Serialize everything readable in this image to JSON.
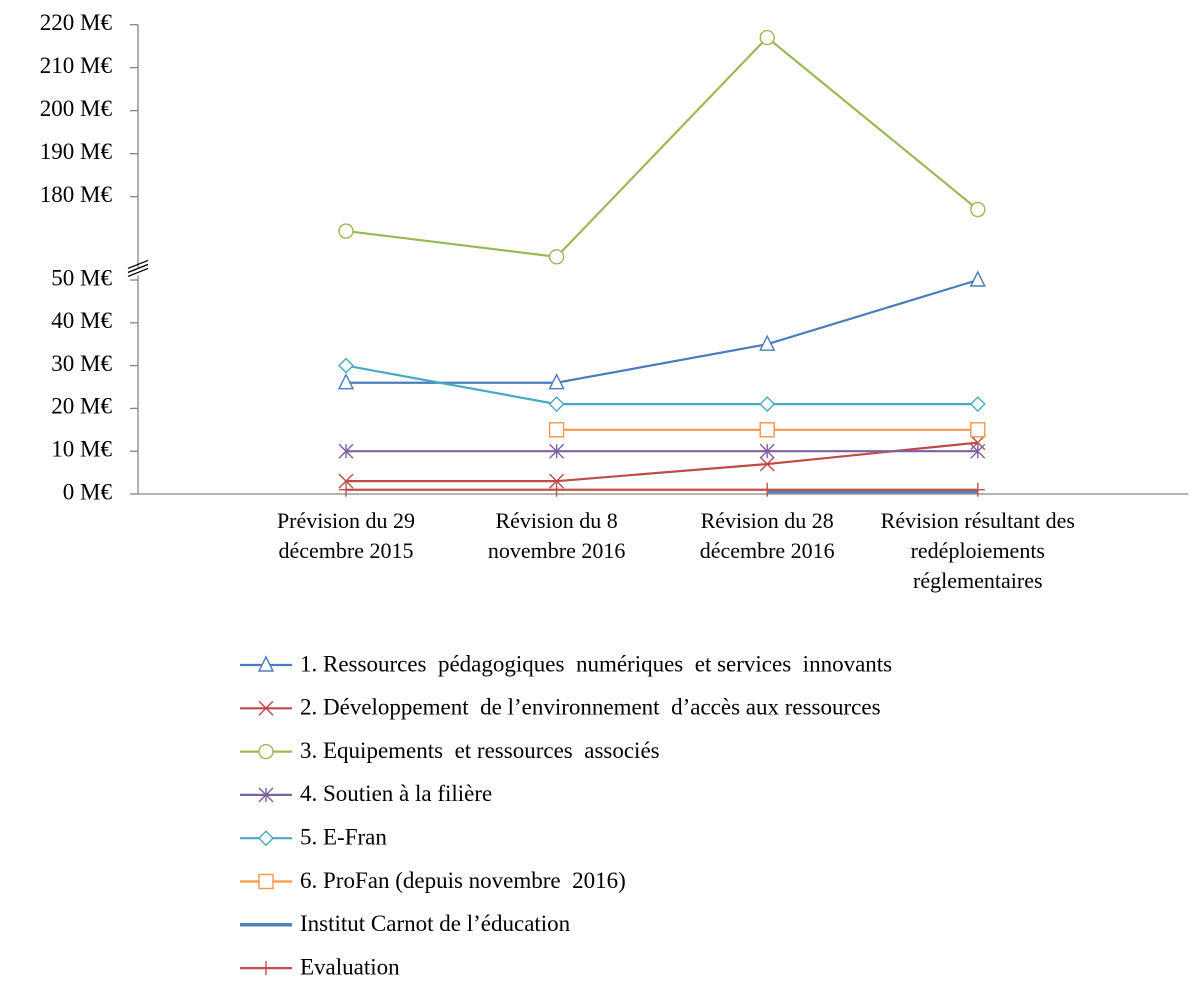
{
  "chart_data": {
    "type": "line",
    "categories": [
      "Prévision du 29 décembre 2015",
      "Révision du 8 novembre 2016",
      "Révision du 28 décembre 2016",
      "Révision résultant des redéploiements réglementaires"
    ],
    "ylim": [
      0,
      220
    ],
    "axis_break": [
      52,
      164
    ],
    "yticks": [
      {
        "value": 0,
        "label": "0 M€"
      },
      {
        "value": 10,
        "label": "10 M€"
      },
      {
        "value": 20,
        "label": "20 M€"
      },
      {
        "value": 30,
        "label": "30 M€"
      },
      {
        "value": 40,
        "label": "40 M€"
      },
      {
        "value": 50,
        "label": "50 M€"
      },
      {
        "value": 180,
        "label": "180 M€"
      },
      {
        "value": 190,
        "label": "190 M€"
      },
      {
        "value": 200,
        "label": "200 M€"
      },
      {
        "value": 210,
        "label": "210 M€"
      },
      {
        "value": 220,
        "label": "220 M€"
      }
    ],
    "series": [
      {
        "name": "1. Ressources  pédagogiques  numériques  et services  innovants",
        "color": "#4a7ebb",
        "marker": "triangle",
        "values": [
          26,
          26,
          35,
          50
        ]
      },
      {
        "name": "2. Développement  de l’environnement  d’accès aux ressources",
        "color": "#be4b48",
        "marker": "x",
        "values": [
          3,
          3,
          7,
          12
        ]
      },
      {
        "name": "3. Equipements  et ressources  associés",
        "color": "#98b954",
        "marker": "circle",
        "values": [
          172,
          166,
          217,
          177
        ]
      },
      {
        "name": "4. Soutien à la filière",
        "color": "#7d60a0",
        "marker": "star",
        "values": [
          10,
          10,
          10,
          10
        ]
      },
      {
        "name": "5. E-Fran",
        "color": "#46aac5",
        "marker": "diamond",
        "values": [
          30,
          21,
          21,
          21
        ]
      },
      {
        "name": "6. ProFan (depuis novembre  2016)",
        "color": "#f79646",
        "marker": "square",
        "values": [
          null,
          15,
          15,
          15
        ]
      },
      {
        "name": "Institut Carnot de l’éducation",
        "color": "#4f81bd",
        "marker": "none",
        "values": [
          null,
          null,
          0.5,
          0.5
        ]
      },
      {
        "name": "Evaluation",
        "color": "#c0504d",
        "marker": "plus",
        "values": [
          1,
          1,
          1,
          1
        ]
      }
    ]
  }
}
